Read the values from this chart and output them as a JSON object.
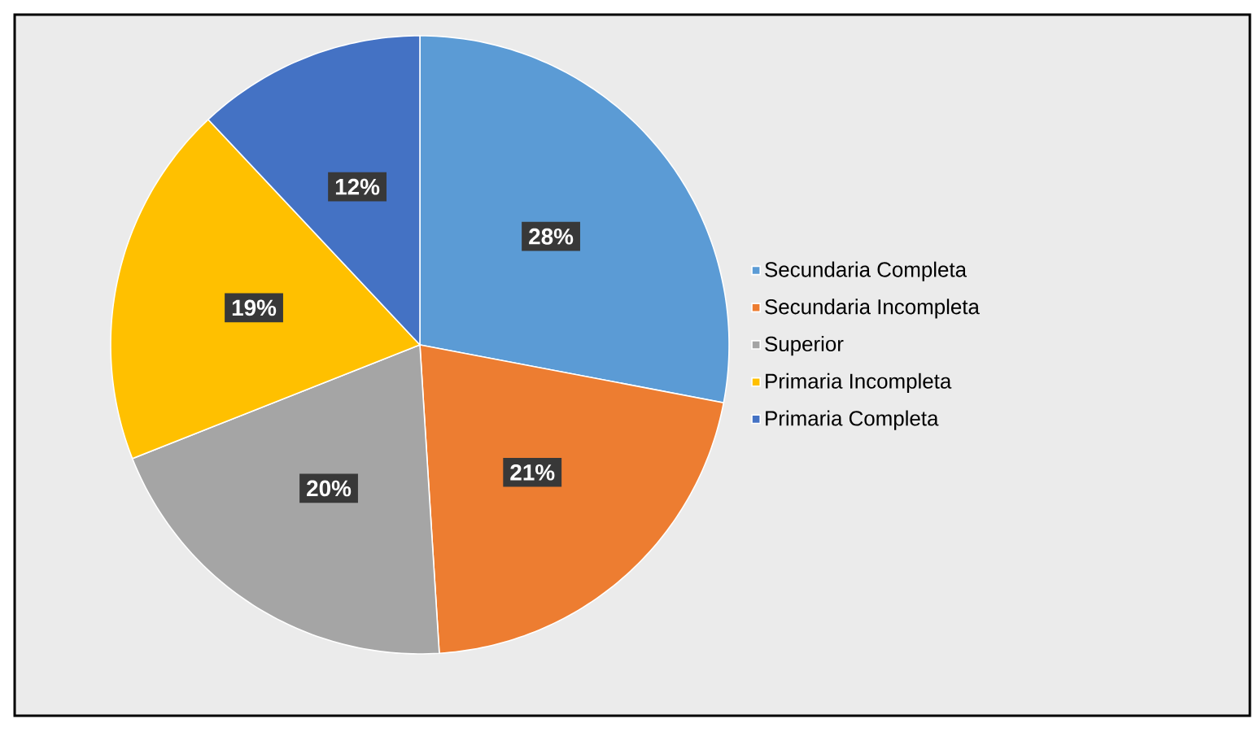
{
  "chart_data": {
    "type": "pie",
    "categories": [
      "Secundaria Completa",
      "Secundaria Incompleta",
      "Superior",
      "Primaria Incompleta",
      "Primaria Completa"
    ],
    "values": [
      28,
      21,
      20,
      19,
      12
    ],
    "value_labels": [
      "28%",
      "21%",
      "20%",
      "19%",
      "12%"
    ],
    "colors": [
      "#5b9bd5",
      "#ed7d31",
      "#a5a5a5",
      "#ffc000",
      "#4472c4"
    ],
    "legend": "right"
  }
}
